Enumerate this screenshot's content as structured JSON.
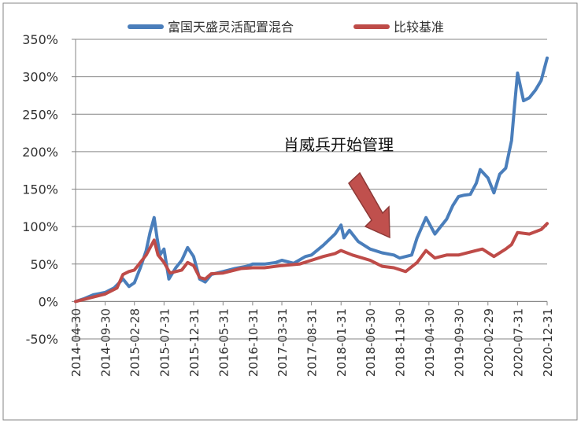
{
  "chart_data": {
    "type": "line",
    "xlabel": "",
    "ylabel": "",
    "ylim": [
      -50,
      350
    ],
    "y_ticks": [
      "350%",
      "300%",
      "250%",
      "200%",
      "150%",
      "100%",
      "50%",
      "0%",
      "-50%"
    ],
    "y_tick_values": [
      350,
      300,
      250,
      200,
      150,
      100,
      50,
      0,
      -50
    ],
    "x_ticks": [
      "2014-04-30",
      "2014-09-30",
      "2015-02-28",
      "2015-07-31",
      "2015-12-31",
      "2016-05-31",
      "2016-10-31",
      "2017-03-31",
      "2017-08-31",
      "2018-01-31",
      "2018-06-30",
      "2018-11-30",
      "2019-04-30",
      "2019-09-30",
      "2020-02-29",
      "2020-07-31",
      "2020-12-31"
    ],
    "grid": "horizontal",
    "legend_position": "top",
    "annotation": {
      "text": "肖威兵开始管理",
      "arrow_target": {
        "x": "2018-09-30",
        "y": 65
      }
    },
    "series": [
      {
        "name": "富国天盛灵活配置混合",
        "color": "#4a7ebb",
        "points": [
          [
            "2014-04-30",
            0
          ],
          [
            "2014-06-15",
            4
          ],
          [
            "2014-07-31",
            9
          ],
          [
            "2014-09-30",
            12
          ],
          [
            "2014-11-15",
            18
          ],
          [
            "2014-12-31",
            30
          ],
          [
            "2015-01-31",
            20
          ],
          [
            "2015-02-28",
            25
          ],
          [
            "2015-03-31",
            45
          ],
          [
            "2015-04-30",
            68
          ],
          [
            "2015-05-20",
            92
          ],
          [
            "2015-06-10",
            112
          ],
          [
            "2015-06-25",
            85
          ],
          [
            "2015-07-10",
            62
          ],
          [
            "2015-07-31",
            70
          ],
          [
            "2015-08-25",
            30
          ],
          [
            "2015-09-30",
            45
          ],
          [
            "2015-10-31",
            55
          ],
          [
            "2015-11-30",
            72
          ],
          [
            "2015-12-31",
            60
          ],
          [
            "2016-01-31",
            30
          ],
          [
            "2016-02-29",
            26
          ],
          [
            "2016-03-31",
            36
          ],
          [
            "2016-04-30",
            38
          ],
          [
            "2016-05-31",
            40
          ],
          [
            "2016-07-31",
            44
          ],
          [
            "2016-09-30",
            47
          ],
          [
            "2016-10-31",
            50
          ],
          [
            "2016-12-31",
            50
          ],
          [
            "2017-02-28",
            52
          ],
          [
            "2017-03-31",
            55
          ],
          [
            "2017-05-31",
            51
          ],
          [
            "2017-07-31",
            60
          ],
          [
            "2017-08-31",
            62
          ],
          [
            "2017-10-31",
            75
          ],
          [
            "2017-12-31",
            90
          ],
          [
            "2018-01-31",
            102
          ],
          [
            "2018-02-15",
            85
          ],
          [
            "2018-03-15",
            95
          ],
          [
            "2018-04-30",
            80
          ],
          [
            "2018-06-30",
            70
          ],
          [
            "2018-08-31",
            65
          ],
          [
            "2018-10-31",
            62
          ],
          [
            "2018-11-30",
            58
          ],
          [
            "2018-12-31",
            60
          ],
          [
            "2019-01-31",
            62
          ],
          [
            "2019-02-28",
            85
          ],
          [
            "2019-04-15",
            112
          ],
          [
            "2019-05-31",
            90
          ],
          [
            "2019-06-30",
            100
          ],
          [
            "2019-07-31",
            110
          ],
          [
            "2019-08-31",
            128
          ],
          [
            "2019-09-30",
            140
          ],
          [
            "2019-10-31",
            142
          ],
          [
            "2019-11-30",
            143
          ],
          [
            "2019-12-31",
            158
          ],
          [
            "2020-01-20",
            176
          ],
          [
            "2020-02-29",
            165
          ],
          [
            "2020-03-31",
            145
          ],
          [
            "2020-04-30",
            170
          ],
          [
            "2020-05-31",
            178
          ],
          [
            "2020-06-30",
            215
          ],
          [
            "2020-07-15",
            260
          ],
          [
            "2020-07-31",
            305
          ],
          [
            "2020-08-31",
            268
          ],
          [
            "2020-09-30",
            272
          ],
          [
            "2020-10-31",
            282
          ],
          [
            "2020-11-30",
            295
          ],
          [
            "2020-12-31",
            325
          ]
        ]
      },
      {
        "name": "比较基准",
        "color": "#be4b48",
        "points": [
          [
            "2014-04-30",
            0
          ],
          [
            "2014-07-31",
            6
          ],
          [
            "2014-09-30",
            10
          ],
          [
            "2014-11-30",
            18
          ],
          [
            "2014-12-31",
            36
          ],
          [
            "2015-01-31",
            40
          ],
          [
            "2015-02-28",
            42
          ],
          [
            "2015-04-30",
            62
          ],
          [
            "2015-06-10",
            82
          ],
          [
            "2015-06-30",
            62
          ],
          [
            "2015-07-31",
            52
          ],
          [
            "2015-08-31",
            38
          ],
          [
            "2015-10-31",
            42
          ],
          [
            "2015-11-30",
            52
          ],
          [
            "2015-12-31",
            48
          ],
          [
            "2016-01-31",
            32
          ],
          [
            "2016-02-29",
            30
          ],
          [
            "2016-03-31",
            37
          ],
          [
            "2016-05-31",
            38
          ],
          [
            "2016-08-31",
            44
          ],
          [
            "2016-10-31",
            45
          ],
          [
            "2016-12-31",
            45
          ],
          [
            "2017-03-31",
            48
          ],
          [
            "2017-06-30",
            50
          ],
          [
            "2017-08-31",
            55
          ],
          [
            "2017-10-31",
            60
          ],
          [
            "2017-12-31",
            64
          ],
          [
            "2018-01-31",
            68
          ],
          [
            "2018-03-31",
            62
          ],
          [
            "2018-06-30",
            55
          ],
          [
            "2018-08-31",
            47
          ],
          [
            "2018-10-31",
            45
          ],
          [
            "2018-12-31",
            40
          ],
          [
            "2019-02-28",
            52
          ],
          [
            "2019-04-15",
            68
          ],
          [
            "2019-05-31",
            58
          ],
          [
            "2019-07-31",
            62
          ],
          [
            "2019-09-30",
            62
          ],
          [
            "2019-12-31",
            68
          ],
          [
            "2020-01-31",
            70
          ],
          [
            "2020-03-31",
            60
          ],
          [
            "2020-05-31",
            70
          ],
          [
            "2020-06-30",
            76
          ],
          [
            "2020-07-31",
            92
          ],
          [
            "2020-09-30",
            90
          ],
          [
            "2020-11-30",
            96
          ],
          [
            "2020-12-31",
            104
          ]
        ]
      }
    ]
  }
}
